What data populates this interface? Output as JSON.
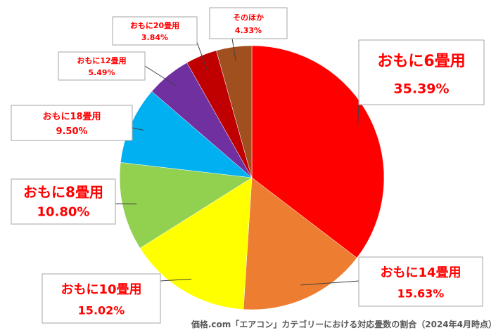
{
  "chart_data": {
    "type": "pie",
    "title": "",
    "source_note": "価格.com「エアコン」カテゴリーにおける対応畳数の割合（2024年4月時点）",
    "slices": [
      {
        "label": "おもに6畳用",
        "value": 35.39,
        "display": "35.39%",
        "color": "#ff0000"
      },
      {
        "label": "おもに14畳用",
        "value": 15.63,
        "display": "15.63%",
        "color": "#ed7d31"
      },
      {
        "label": "おもに10畳用",
        "value": 15.02,
        "display": "15.02%",
        "color": "#ffff00"
      },
      {
        "label": "おもに8畳用",
        "value": 10.8,
        "display": "10.80%",
        "color": "#92d050"
      },
      {
        "label": "おもに18畳用",
        "value": 9.5,
        "display": "9.50%",
        "color": "#00b0f0"
      },
      {
        "label": "おもに12畳用",
        "value": 5.49,
        "display": "5.49%",
        "color": "#7030a0"
      },
      {
        "label": "おもに20畳用",
        "value": 3.84,
        "display": "3.84%",
        "color": "#c00000"
      },
      {
        "label": "そのほか",
        "value": 4.33,
        "display": "4.33%",
        "color": "#a0501e"
      }
    ],
    "label_color": "#ff0000"
  }
}
